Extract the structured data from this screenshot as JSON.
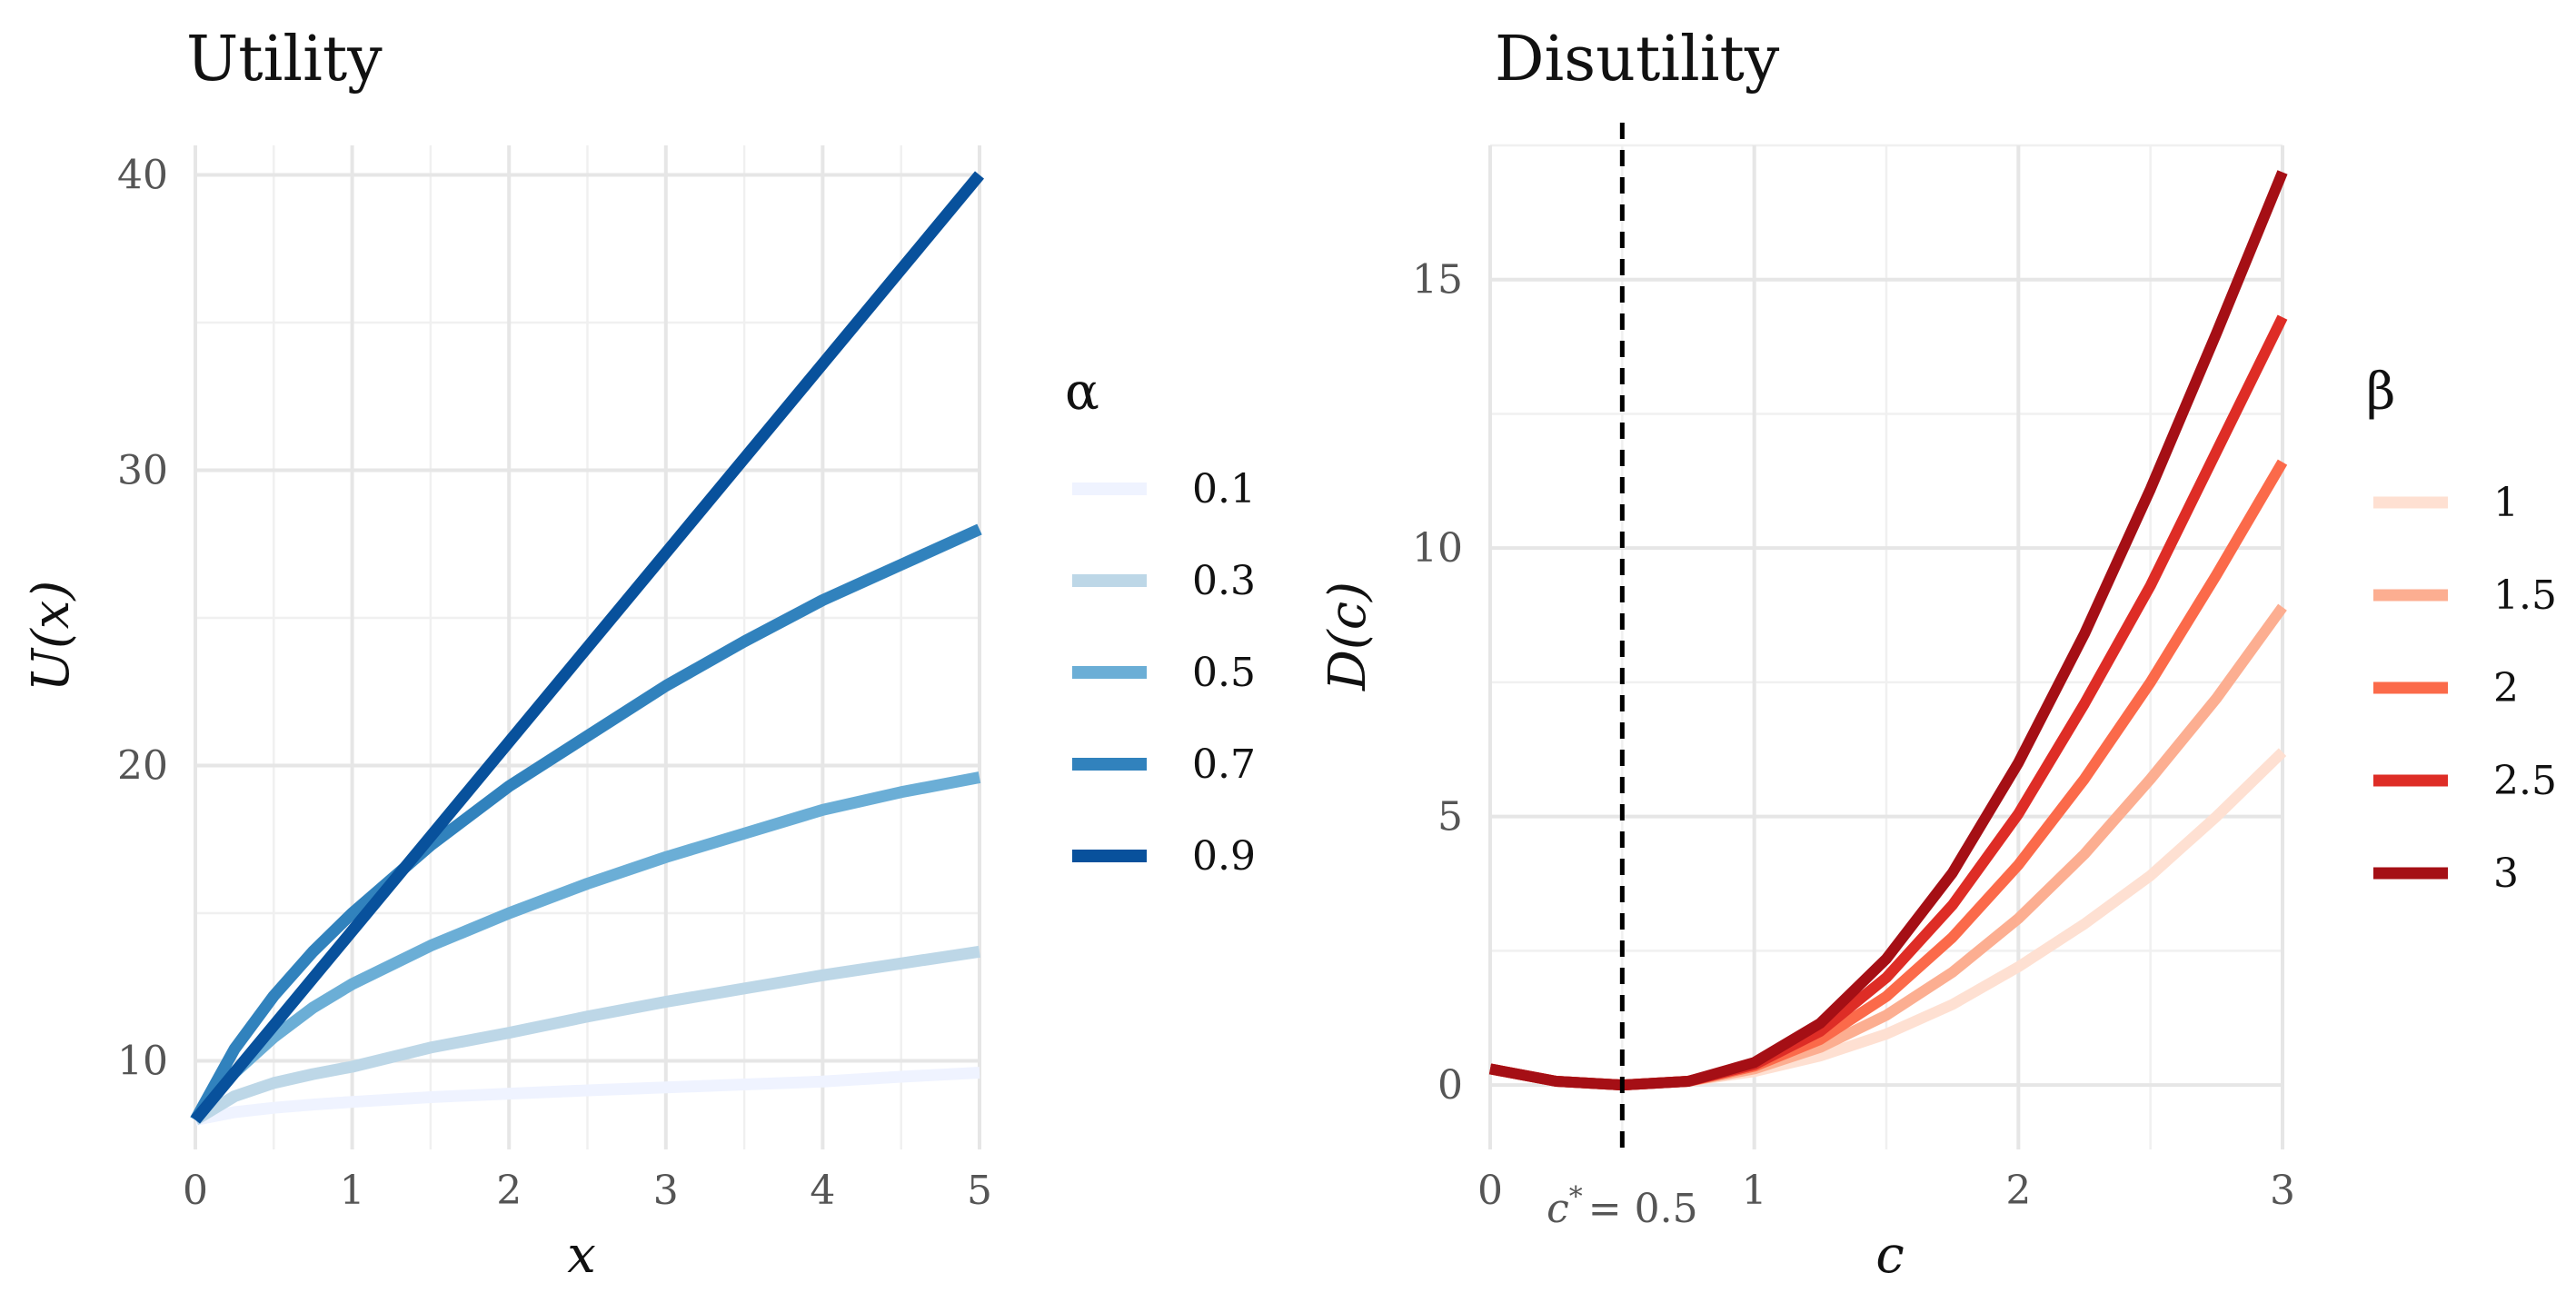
{
  "chart_data": [
    {
      "type": "line",
      "title": "Utility",
      "xlabel": "x",
      "ylabel": "U(x)",
      "xlim": [
        0,
        5
      ],
      "ylim": [
        7,
        41
      ],
      "x_ticks": [
        0,
        1,
        2,
        3,
        4,
        5
      ],
      "y_ticks": [
        10,
        20,
        30,
        40
      ],
      "legend_title": "α",
      "legend_position": "right",
      "x": [
        0,
        0.25,
        0.5,
        0.75,
        1,
        1.5,
        2,
        2.5,
        3,
        3.5,
        4,
        4.5,
        5
      ],
      "series": [
        {
          "name": "0.1",
          "color": "#eff3ff",
          "values": [
            8.0,
            8.26,
            8.41,
            8.52,
            8.61,
            8.77,
            8.89,
            9.0,
            9.1,
            9.2,
            9.3,
            9.46,
            9.6
          ]
        },
        {
          "name": "0.3",
          "color": "#bdd7e7",
          "values": [
            8.0,
            8.8,
            9.25,
            9.55,
            9.8,
            10.45,
            10.95,
            11.5,
            12.0,
            12.45,
            12.9,
            13.3,
            13.7
          ]
        },
        {
          "name": "0.5",
          "color": "#6baed6",
          "values": [
            8.0,
            9.6,
            10.8,
            11.8,
            12.6,
            13.9,
            15.0,
            16.0,
            16.9,
            17.7,
            18.5,
            19.1,
            19.6
          ]
        },
        {
          "name": "0.7",
          "color": "#3182bd",
          "values": [
            8.0,
            10.4,
            12.2,
            13.7,
            15.0,
            17.3,
            19.3,
            21.0,
            22.7,
            24.2,
            25.6,
            26.8,
            28.0
          ]
        },
        {
          "name": "0.9",
          "color": "#08519c",
          "values": [
            8.0,
            9.6,
            11.2,
            12.8,
            14.4,
            17.6,
            20.8,
            24.0,
            27.2,
            30.4,
            33.6,
            36.8,
            40.0
          ]
        }
      ]
    },
    {
      "type": "line",
      "title": "Disutility",
      "xlabel": "c",
      "ylabel": "D(c)",
      "xlim": [
        0,
        3
      ],
      "ylim": [
        -1.2,
        17.5
      ],
      "x_ticks": [
        0,
        1,
        2,
        3
      ],
      "y_ticks": [
        0,
        5,
        10,
        15
      ],
      "legend_title": "β",
      "legend_position": "right",
      "reference_line": {
        "x": 0.5,
        "style": "dashed",
        "label_base": "c",
        "label_sup": "*",
        "label_rest": "= 0.5"
      },
      "x": [
        0,
        0.25,
        0.5,
        0.75,
        1,
        1.25,
        1.5,
        1.75,
        2,
        2.25,
        2.5,
        2.75,
        3
      ],
      "series": [
        {
          "name": "1",
          "color": "#fee0d2",
          "values": [
            0.3,
            0.07,
            0.0,
            0.07,
            0.25,
            0.54,
            0.95,
            1.5,
            2.2,
            3.0,
            3.9,
            5.0,
            6.2
          ]
        },
        {
          "name": "1.5",
          "color": "#fcae91",
          "values": [
            0.3,
            0.07,
            0.0,
            0.07,
            0.3,
            0.7,
            1.3,
            2.1,
            3.1,
            4.3,
            5.7,
            7.2,
            8.9
          ]
        },
        {
          "name": "2",
          "color": "#fb6a4a",
          "values": [
            0.3,
            0.07,
            0.0,
            0.07,
            0.35,
            0.85,
            1.65,
            2.75,
            4.1,
            5.7,
            7.5,
            9.5,
            11.6
          ]
        },
        {
          "name": "2.5",
          "color": "#de2d26",
          "values": [
            0.3,
            0.07,
            0.0,
            0.07,
            0.38,
            1.0,
            2.0,
            3.35,
            5.05,
            7.1,
            9.3,
            11.8,
            14.3
          ]
        },
        {
          "name": "3",
          "color": "#a50f15",
          "values": [
            0.3,
            0.07,
            0.0,
            0.07,
            0.42,
            1.15,
            2.35,
            3.95,
            6.0,
            8.4,
            11.1,
            14.0,
            17.0
          ]
        }
      ]
    }
  ]
}
